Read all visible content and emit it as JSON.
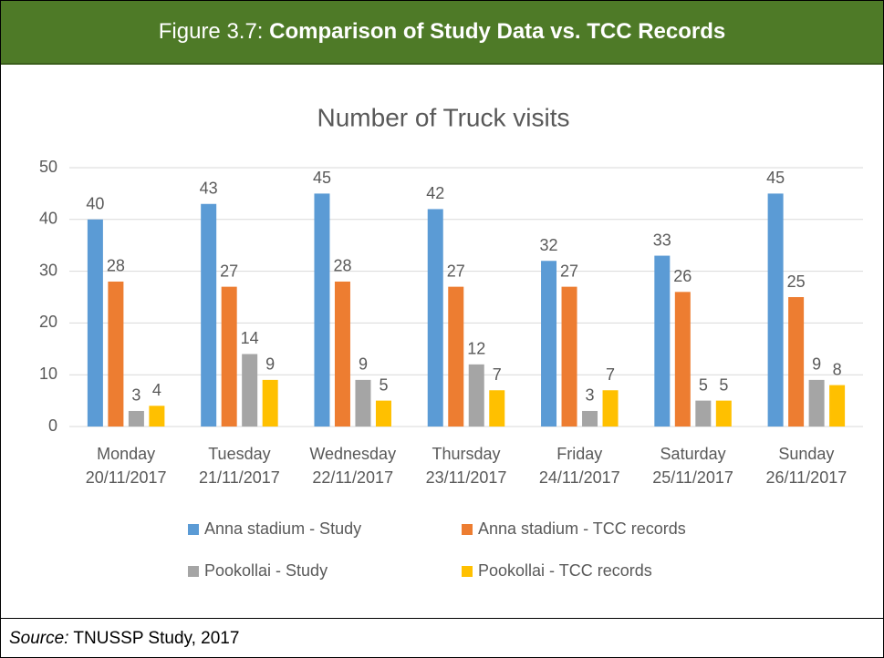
{
  "header": {
    "prefix": "Figure 3.7:",
    "title": "Comparison of Study Data vs. TCC Records"
  },
  "source": {
    "label": "Source:",
    "text": "TNUSSP Study, 2017"
  },
  "chart_data": {
    "type": "bar",
    "title": "Number of Truck visits",
    "categories": [
      [
        "Monday",
        "20/11/2017"
      ],
      [
        "Tuesday",
        "21/11/2017"
      ],
      [
        "Wednesday",
        "22/11/2017"
      ],
      [
        "Thursday",
        "23/11/2017"
      ],
      [
        "Friday",
        "24/11/2017"
      ],
      [
        "Saturday",
        "25/11/2017"
      ],
      [
        "Sunday",
        "26/11/2017"
      ]
    ],
    "series": [
      {
        "name": "Anna stadium - Study",
        "color": "#5b9bd5",
        "values": [
          40,
          43,
          45,
          42,
          32,
          33,
          45
        ]
      },
      {
        "name": "Anna stadium - TCC records",
        "color": "#ed7d31",
        "values": [
          28,
          27,
          28,
          27,
          27,
          26,
          25
        ]
      },
      {
        "name": "Pookollai - Study",
        "color": "#a5a5a5",
        "values": [
          3,
          14,
          9,
          12,
          3,
          5,
          9
        ]
      },
      {
        "name": "Pookollai - TCC records",
        "color": "#ffc000",
        "values": [
          4,
          9,
          5,
          7,
          7,
          5,
          8
        ]
      }
    ],
    "ylim": [
      0,
      50
    ],
    "yticks": [
      0,
      10,
      20,
      30,
      40,
      50
    ],
    "grid": true,
    "legend": "bottom"
  }
}
